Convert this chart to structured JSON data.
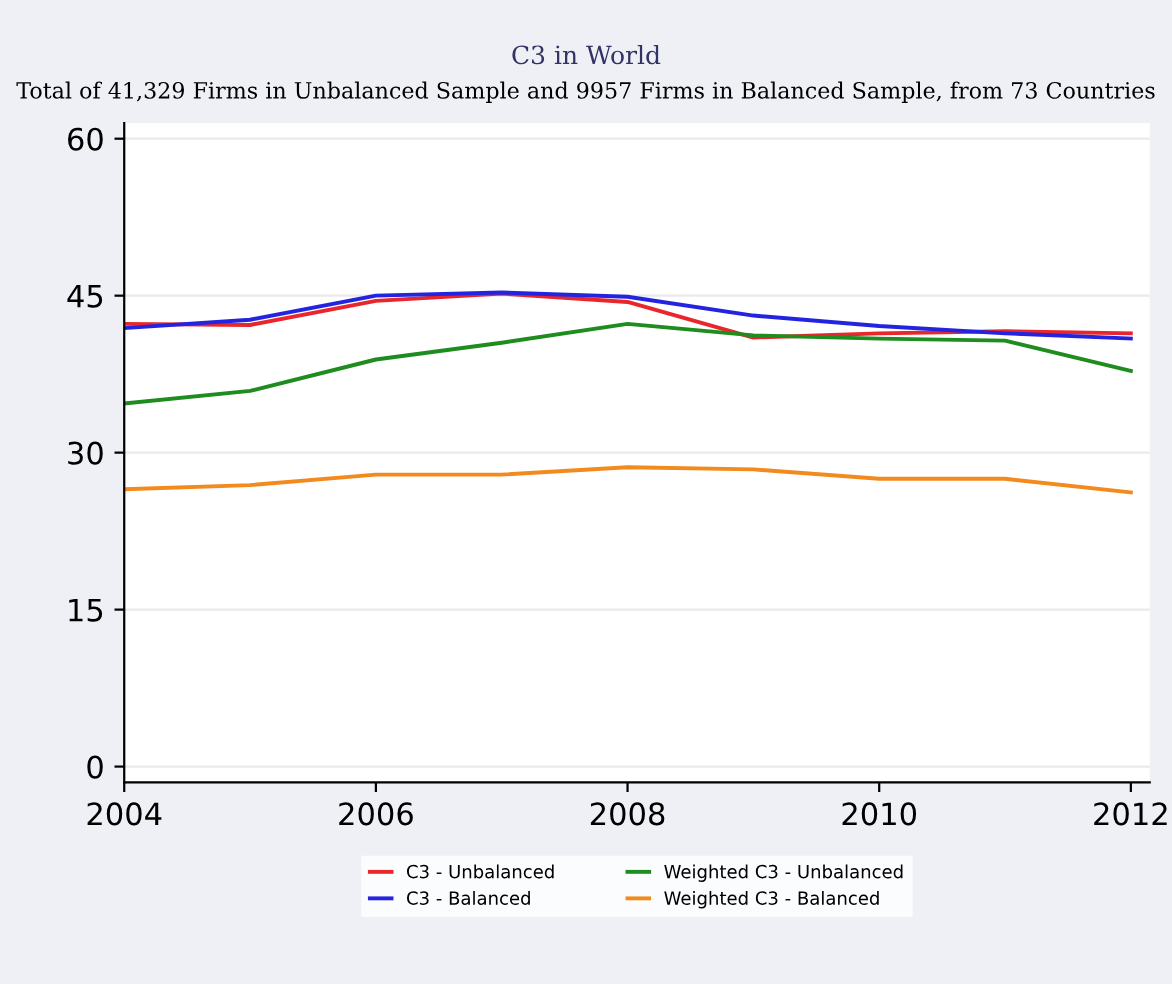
{
  "chart_data": {
    "type": "line",
    "title": "C3 in World",
    "subtitle": "Total of 41,329 Firms in Unbalanced Sample and 9957 Firms in Balanced Sample, from 73 Countries",
    "x": [
      2004,
      2005,
      2006,
      2007,
      2008,
      2009,
      2010,
      2011,
      2012
    ],
    "series": [
      {
        "name": "C3 - Unbalanced",
        "color": "#e8262b",
        "values": [
          42.3,
          42.2,
          44.5,
          45.2,
          44.4,
          41.0,
          41.4,
          41.6,
          41.4
        ]
      },
      {
        "name": "C3 - Balanced",
        "color": "#2424e0",
        "values": [
          41.9,
          42.7,
          45.0,
          45.3,
          44.9,
          43.1,
          42.1,
          41.4,
          40.9
        ]
      },
      {
        "name": "Weighted C3 - Unbalanced",
        "color": "#1e8c1e",
        "values": [
          34.7,
          35.9,
          38.9,
          40.5,
          42.3,
          41.2,
          40.9,
          40.7,
          37.8
        ]
      },
      {
        "name": "Weighted C3 - Balanced",
        "color": "#f28a1e",
        "values": [
          26.5,
          26.9,
          27.9,
          27.9,
          28.6,
          28.4,
          27.5,
          27.5,
          26.2
        ]
      }
    ],
    "xlim": [
      2004,
      2012.15
    ],
    "ylim": [
      -1.5,
      61.5
    ],
    "xticks": [
      2004,
      2006,
      2008,
      2010,
      2012
    ],
    "yticks": [
      0,
      15,
      30,
      45,
      60
    ],
    "grid": "y",
    "legend": "bottom",
    "marker": "none",
    "line_style": "solid"
  }
}
